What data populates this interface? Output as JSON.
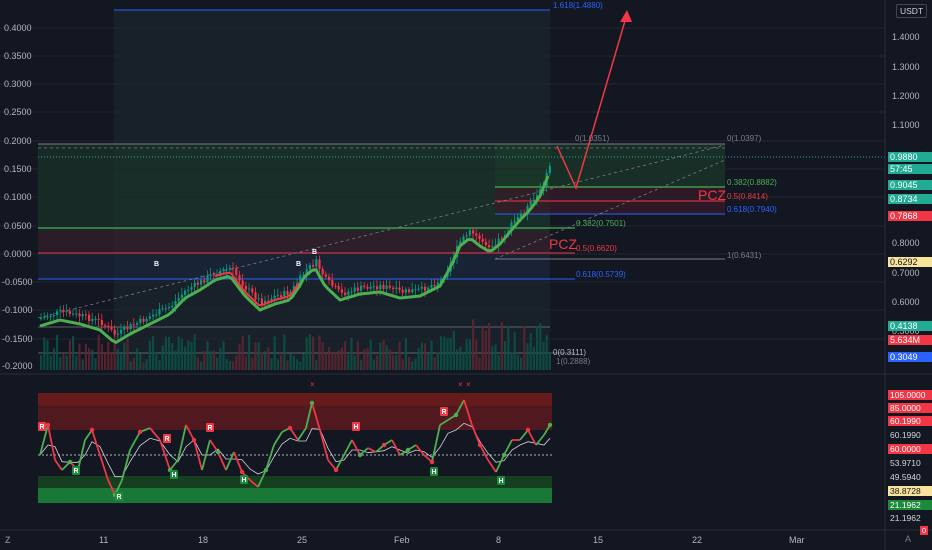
{
  "currency_badge": "USDT",
  "left_axis": [
    "0.4000",
    "0.3500",
    "0.3000",
    "0.2500",
    "0.2000",
    "0.1500",
    "0.1000",
    "0.0500",
    "0.0000",
    "-0.0500",
    "-0.1000",
    "-0.1500",
    "-0.2000"
  ],
  "right_axis": [
    "1.4000",
    "1.3000",
    "1.2000",
    "1.1000",
    "0.9000",
    "0.8000",
    "0.7000",
    "0.6000",
    "0.5000"
  ],
  "price_tags": [
    {
      "text": "0.9880",
      "color": "#22ab94"
    },
    {
      "text": "57:45",
      "color": "#22ab94"
    },
    {
      "text": "0.9045",
      "color": "#22ab94"
    },
    {
      "text": "0.8734",
      "color": "#22ab94"
    },
    {
      "text": "0.7868",
      "color": "#f23645"
    },
    {
      "text": "0.6292",
      "color": "#f7e39a"
    },
    {
      "text": "0.4138",
      "color": "#22ab94"
    },
    {
      "text": "5.634M",
      "color": "#f23645"
    },
    {
      "text": "0.3049",
      "color": "#2962ff"
    }
  ],
  "osc_axis": [
    {
      "text": "105.0000",
      "color": "#f23645"
    },
    {
      "text": "85.0000",
      "color": "#f23645"
    },
    {
      "text": "60.1990",
      "color": "#f23645"
    },
    {
      "text": "60.1990",
      "color": "none"
    },
    {
      "text": "60.0000",
      "color": "#f23645"
    },
    {
      "text": "53.9710",
      "color": "none"
    },
    {
      "text": "49.5940",
      "color": "none"
    },
    {
      "text": "38.8728",
      "color": "#f7e39a"
    },
    {
      "text": "21.1962",
      "color": "#1b8a3a"
    },
    {
      "text": "21.1962",
      "color": "none"
    },
    {
      "text": "0",
      "color": "#f23645"
    }
  ],
  "time_axis": [
    "11",
    "18",
    "25",
    "Feb",
    "8",
    "15",
    "22",
    "Mar"
  ],
  "fib_labels": {
    "top_ext": "1.618(1.4880)",
    "upper_zero_a": "0(1.0351)",
    "upper_zero_b": "0(1.0397)",
    "upper_382": "0.382(0.8882)",
    "upper_5": "0.5(0.8414)",
    "upper_618": "0.618(0.7940)",
    "lower_382": "0.382(0.7501)",
    "lower_5": "0.5(0.6620)",
    "lower_one": "1(0.6431)",
    "lower_618": "0.618(0.5739)",
    "bottom_zero": "0(0.3111)",
    "bottom_one": "1(0.2888)"
  },
  "pcz_labels": [
    "PCZ",
    "PCZ"
  ],
  "signal_marks": [
    "B",
    "B",
    "B",
    "R",
    "R",
    "R",
    "R",
    "H",
    "H",
    "H",
    "H",
    "H",
    "H"
  ],
  "icons": [
    "tradingview-logo-icon",
    "log-toggle-icon",
    "auto-scale-icon"
  ],
  "colors": {
    "bull": "#089981",
    "bear": "#f23645",
    "accent": "#2962ff",
    "ma_green": "#4caf50",
    "fib_gray": "#787b86"
  }
}
